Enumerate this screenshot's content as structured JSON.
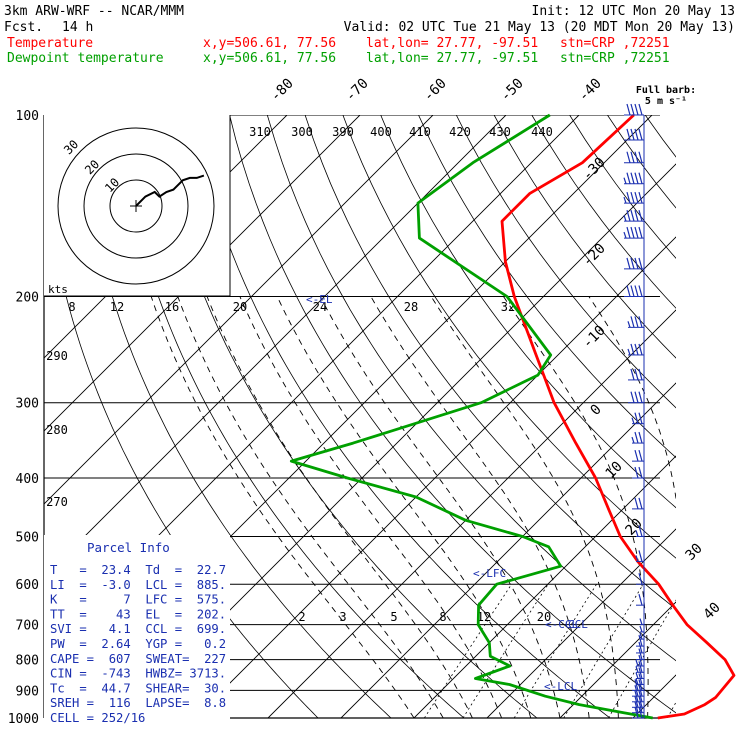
{
  "header": {
    "model": "3km ARW-WRF -- NCAR/MMM",
    "fcst_label": "Fcst.",
    "fcst_value": "14 h",
    "init": "Init: 12 UTC Mon 20 May 13",
    "valid": "Valid: 02 UTC Tue 21 May 13 (20 MDT Mon 20 May 13)",
    "legend": [
      {
        "name": "Temperature",
        "xy": "x,y=506.61, 77.56",
        "latlon": "lat,lon= 27.77, -97.51",
        "stn": "stn=CRP ,72251",
        "color": "#ff0000"
      },
      {
        "name": "Dewpoint temperature",
        "xy": "x,y=506.61, 77.56",
        "latlon": "lat,lon= 27.77, -97.51",
        "stn": "stn=CRP ,72251",
        "color": "#00a000"
      }
    ]
  },
  "barb_key": {
    "title": "Full barb:",
    "value": "5 m s⁻¹"
  },
  "hodograph": {
    "units": "kts",
    "ring_labels": [
      "10",
      "20",
      "30"
    ]
  },
  "parcel_info": {
    "title": "Parcel Info",
    "lines": [
      "T   =  23.4  Td  =  22.7",
      "LI  =  -3.0  LCL =  885.",
      "K   =     7  LFC =  575.",
      "TT  =    43  EL  =  202.",
      "SVI =   4.1  CCL =  699.",
      "PW  =  2.64  YGP =   0.2",
      "CAPE =  607  SWEAT=  227",
      "CIN =  -743  HWBZ= 3713.",
      "Tc  =  44.7  SHEAR=  30.",
      "SREH =  116  LAPSE=  8.8",
      "CELL = 252/16"
    ]
  },
  "chart_data": {
    "type": "line",
    "title": "",
    "y_axis": "pressure (hPa), log scale",
    "pressure_ticks": [
      100,
      200,
      300,
      400,
      500,
      600,
      700,
      800,
      900,
      1000
    ],
    "isotherm_labels": [
      "-80",
      "-70",
      "-60",
      "-50",
      "-40",
      "-30",
      "-20",
      "-10",
      "0",
      "10",
      "20",
      "30",
      "40"
    ],
    "theta_labels": [
      "310",
      "300",
      "390",
      "400",
      "410",
      "420",
      "430",
      "440",
      "290",
      "280",
      "270"
    ],
    "mixing_ratio_labels": [
      "8",
      "12",
      "16",
      "20",
      "24",
      "28",
      "32",
      "2",
      "3",
      "5",
      "8",
      "12",
      "20"
    ],
    "level_markers": [
      "EL",
      "LFC",
      "CCL",
      "LCL"
    ],
    "series": [
      {
        "name": "Temperature",
        "color": "#ff0000",
        "points": [
          [
            1000,
            23.4
          ],
          [
            985,
            26.5
          ],
          [
            950,
            28.0
          ],
          [
            925,
            28.5
          ],
          [
            850,
            28.0
          ],
          [
            800,
            24.6
          ],
          [
            750,
            19.8
          ],
          [
            700,
            14.6
          ],
          [
            650,
            10.0
          ],
          [
            600,
            5.2
          ],
          [
            550,
            -0.8
          ],
          [
            500,
            -6.6
          ],
          [
            450,
            -12.0
          ],
          [
            400,
            -18.0
          ],
          [
            350,
            -25.5
          ],
          [
            300,
            -34.0
          ],
          [
            250,
            -43.0
          ],
          [
            200,
            -54.0
          ],
          [
            175,
            -60.0
          ],
          [
            150,
            -66.0
          ],
          [
            135,
            -66.0
          ],
          [
            120,
            -63.0
          ],
          [
            100,
            -62.5
          ]
        ]
      },
      {
        "name": "Dewpoint temperature",
        "color": "#00a000",
        "points": [
          [
            1000,
            22.7
          ],
          [
            980,
            18.0
          ],
          [
            950,
            10.8
          ],
          [
            920,
            5.0
          ],
          [
            880,
            -1.5
          ],
          [
            860,
            -7.0
          ],
          [
            820,
            -4.0
          ],
          [
            790,
            -8.0
          ],
          [
            750,
            -10.0
          ],
          [
            700,
            -14.0
          ],
          [
            650,
            -16.6
          ],
          [
            600,
            -17.0
          ],
          [
            560,
            -10.7
          ],
          [
            520,
            -15.0
          ],
          [
            500,
            -20.0
          ],
          [
            470,
            -30.0
          ],
          [
            430,
            -40.0
          ],
          [
            400,
            -52.0
          ],
          [
            375,
            -62.0
          ],
          [
            350,
            -56.0
          ],
          [
            300,
            -44.0
          ],
          [
            270,
            -40.0
          ],
          [
            250,
            -41.0
          ],
          [
            200,
            -55.0
          ],
          [
            160,
            -75.0
          ],
          [
            140,
            -80.0
          ],
          [
            120,
            -78.0
          ],
          [
            100,
            -74.0
          ]
        ]
      }
    ],
    "wind_barbs_kt": [
      {
        "p": 1000,
        "spd": 20,
        "dir": 150
      },
      {
        "p": 980,
        "spd": 20,
        "dir": 155
      },
      {
        "p": 960,
        "spd": 20,
        "dir": 160
      },
      {
        "p": 940,
        "spd": 20,
        "dir": 165
      },
      {
        "p": 920,
        "spd": 20,
        "dir": 170
      },
      {
        "p": 900,
        "spd": 20,
        "dir": 175
      },
      {
        "p": 880,
        "spd": 15,
        "dir": 180
      },
      {
        "p": 860,
        "spd": 15,
        "dir": 185
      },
      {
        "p": 840,
        "spd": 15,
        "dir": 190
      },
      {
        "p": 820,
        "spd": 15,
        "dir": 195
      },
      {
        "p": 800,
        "spd": 10,
        "dir": 200
      },
      {
        "p": 780,
        "spd": 10,
        "dir": 205
      },
      {
        "p": 760,
        "spd": 10,
        "dir": 210
      },
      {
        "p": 740,
        "spd": 5,
        "dir": 215
      },
      {
        "p": 720,
        "spd": 5,
        "dir": 220
      },
      {
        "p": 700,
        "spd": 5,
        "dir": 230
      },
      {
        "p": 650,
        "spd": 10,
        "dir": 240
      },
      {
        "p": 600,
        "spd": 10,
        "dir": 245
      },
      {
        "p": 550,
        "spd": 15,
        "dir": 250
      },
      {
        "p": 500,
        "spd": 15,
        "dir": 250
      },
      {
        "p": 450,
        "spd": 20,
        "dir": 255
      },
      {
        "p": 400,
        "spd": 20,
        "dir": 255
      },
      {
        "p": 375,
        "spd": 20,
        "dir": 255
      },
      {
        "p": 350,
        "spd": 25,
        "dir": 260
      },
      {
        "p": 325,
        "spd": 25,
        "dir": 260
      },
      {
        "p": 300,
        "spd": 30,
        "dir": 260
      },
      {
        "p": 275,
        "spd": 30,
        "dir": 260
      },
      {
        "p": 250,
        "spd": 35,
        "dir": 265
      },
      {
        "p": 225,
        "spd": 35,
        "dir": 265
      },
      {
        "p": 200,
        "spd": 40,
        "dir": 265
      },
      {
        "p": 180,
        "spd": 40,
        "dir": 265
      },
      {
        "p": 160,
        "spd": 45,
        "dir": 265
      },
      {
        "p": 150,
        "spd": 45,
        "dir": 265
      },
      {
        "p": 140,
        "spd": 45,
        "dir": 265
      },
      {
        "p": 130,
        "spd": 45,
        "dir": 265
      },
      {
        "p": 120,
        "spd": 40,
        "dir": 265
      },
      {
        "p": 110,
        "spd": 40,
        "dir": 265
      },
      {
        "p": 100,
        "spd": 40,
        "dir": 265
      }
    ],
    "hodograph_kt": [
      [
        0,
        0
      ],
      [
        4,
        -4
      ],
      [
        8,
        -6
      ],
      [
        10,
        -4
      ],
      [
        13,
        -6
      ],
      [
        16,
        -7
      ],
      [
        18,
        -9
      ],
      [
        20,
        -11
      ],
      [
        23,
        -12
      ],
      [
        26,
        -12
      ],
      [
        29,
        -13
      ]
    ]
  }
}
